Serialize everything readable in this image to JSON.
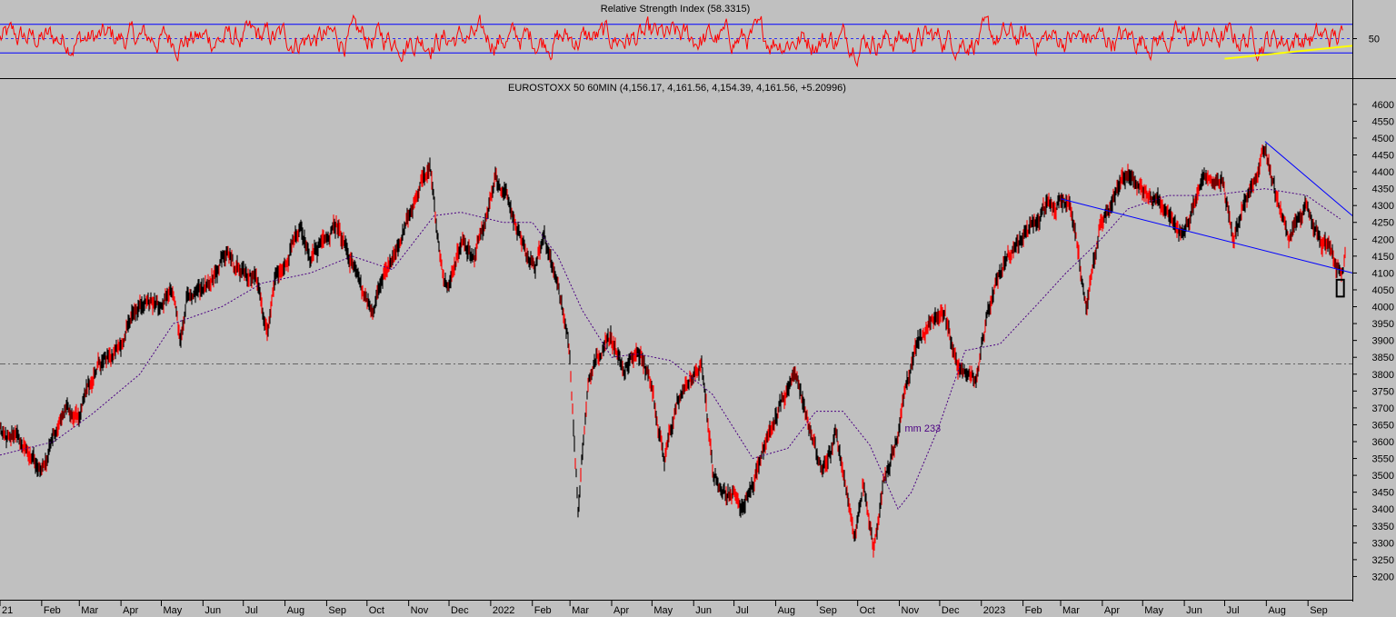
{
  "colors": {
    "background": "#c0c0c0",
    "candles": "#000000",
    "candle_accent": "#ff0000",
    "rsi_line": "#ff0000",
    "rsi_bands": "#0000ff",
    "rsi_trendline": "#ffff00",
    "moving_average": "#4b0082",
    "trendlines": "#0000ff",
    "axis_text": "#000000",
    "reference_line": "#444444"
  },
  "chart_data": [
    {
      "type": "line",
      "panel": "indicator",
      "title": "Relative Strength Index (58.3315)",
      "y_ticks": [
        "50"
      ],
      "band_levels": [
        70,
        30
      ],
      "mid_level": 50,
      "ylim": [
        0,
        100
      ],
      "trendline": {
        "from_x": "2023-07-01",
        "to_x": "2023-09-30",
        "y_start": 22,
        "y_end": 40
      }
    },
    {
      "type": "line",
      "panel": "price",
      "title": "EUROSTOXX 50 60MIN (4,156.17, 4,161.56, 4,154.39, 4,161.56, +5.20996)",
      "ylim": [
        3150,
        4640
      ],
      "y_ticks": [
        "4600",
        "4550",
        "4500",
        "4450",
        "4400",
        "4350",
        "4300",
        "4250",
        "4200",
        "4150",
        "4100",
        "4050",
        "4000",
        "3950",
        "3900",
        "3850",
        "3800",
        "3750",
        "3700",
        "3650",
        "3600",
        "3550",
        "3500",
        "3450",
        "3400",
        "3350",
        "3300",
        "3250",
        "3200"
      ],
      "x_ticks": [
        "21",
        "Feb",
        "Mar",
        "Apr",
        "May",
        "Jun",
        "Jul",
        "Aug",
        "Sep",
        "Oct",
        "Nov",
        "Dec",
        "2022",
        "Feb",
        "Mar",
        "Apr",
        "May",
        "Jun",
        "Jul",
        "Aug",
        "Sep",
        "Oct",
        "Nov",
        "Dec",
        "2023",
        "Feb",
        "Mar",
        "Apr",
        "May",
        "Jun",
        "Jul",
        "Aug",
        "Sep"
      ],
      "x_tick_dates": [
        "2021-01-01",
        "2021-02-01",
        "2021-03-01",
        "2021-04-01",
        "2021-05-01",
        "2021-06-01",
        "2021-07-01",
        "2021-08-01",
        "2021-09-01",
        "2021-10-01",
        "2021-11-01",
        "2021-12-01",
        "2022-01-01",
        "2022-02-01",
        "2022-03-01",
        "2022-04-01",
        "2022-05-01",
        "2022-06-01",
        "2022-07-01",
        "2022-08-01",
        "2022-09-01",
        "2022-10-01",
        "2022-11-01",
        "2022-12-01",
        "2023-01-01",
        "2023-02-01",
        "2023-03-01",
        "2023-04-01",
        "2023-05-01",
        "2023-06-01",
        "2023-07-01",
        "2023-08-01",
        "2023-09-01"
      ],
      "x_range": [
        "2021-01-01",
        "2023-10-04"
      ],
      "reference_level": 3830,
      "series": [
        {
          "name": "EUROSTOXX 50 60MIN",
          "points": [
            [
              "2021-01-01",
              3640
            ],
            [
              "2021-01-20",
              3580
            ],
            [
              "2021-02-01",
              3500
            ],
            [
              "2021-02-10",
              3620
            ],
            [
              "2021-02-20",
              3700
            ],
            [
              "2021-03-01",
              3680
            ],
            [
              "2021-03-08",
              3760
            ],
            [
              "2021-03-15",
              3830
            ],
            [
              "2021-03-25",
              3850
            ],
            [
              "2021-04-01",
              3880
            ],
            [
              "2021-04-10",
              3990
            ],
            [
              "2021-04-20",
              4020
            ],
            [
              "2021-04-30",
              4000
            ],
            [
              "2021-05-10",
              4040
            ],
            [
              "2021-05-15",
              3900
            ],
            [
              "2021-05-20",
              4020
            ],
            [
              "2021-06-01",
              4060
            ],
            [
              "2021-06-10",
              4100
            ],
            [
              "2021-06-20",
              4160
            ],
            [
              "2021-06-25",
              4110
            ],
            [
              "2021-07-01",
              4090
            ],
            [
              "2021-07-10",
              4100
            ],
            [
              "2021-07-19",
              3930
            ],
            [
              "2021-07-25",
              4080
            ],
            [
              "2021-08-01",
              4120
            ],
            [
              "2021-08-12",
              4230
            ],
            [
              "2021-08-20",
              4150
            ],
            [
              "2021-09-01",
              4200
            ],
            [
              "2021-09-08",
              4240
            ],
            [
              "2021-09-20",
              4130
            ],
            [
              "2021-09-30",
              4030
            ],
            [
              "2021-10-06",
              3990
            ],
            [
              "2021-10-15",
              4120
            ],
            [
              "2021-10-25",
              4180
            ],
            [
              "2021-11-01",
              4260
            ],
            [
              "2021-11-10",
              4380
            ],
            [
              "2021-11-17",
              4410
            ],
            [
              "2021-11-26",
              4100
            ],
            [
              "2021-12-01",
              4060
            ],
            [
              "2021-12-10",
              4200
            ],
            [
              "2021-12-20",
              4150
            ],
            [
              "2021-12-31",
              4300
            ],
            [
              "2022-01-05",
              4380
            ],
            [
              "2022-01-15",
              4300
            ],
            [
              "2022-01-28",
              4150
            ],
            [
              "2022-02-03",
              4120
            ],
            [
              "2022-02-10",
              4200
            ],
            [
              "2022-02-20",
              4070
            ],
            [
              "2022-02-28",
              3900
            ],
            [
              "2022-03-07",
              3400
            ],
            [
              "2022-03-15",
              3800
            ],
            [
              "2022-03-25",
              3880
            ],
            [
              "2022-04-01",
              3910
            ],
            [
              "2022-04-10",
              3800
            ],
            [
              "2022-04-20",
              3880
            ],
            [
              "2022-04-30",
              3780
            ],
            [
              "2022-05-10",
              3550
            ],
            [
              "2022-05-20",
              3700
            ],
            [
              "2022-06-01",
              3800
            ],
            [
              "2022-06-07",
              3840
            ],
            [
              "2022-06-15",
              3520
            ],
            [
              "2022-06-22",
              3450
            ],
            [
              "2022-07-01",
              3440
            ],
            [
              "2022-07-06",
              3390
            ],
            [
              "2022-07-15",
              3480
            ],
            [
              "2022-07-25",
              3600
            ],
            [
              "2022-08-01",
              3680
            ],
            [
              "2022-08-10",
              3760
            ],
            [
              "2022-08-16",
              3800
            ],
            [
              "2022-08-26",
              3650
            ],
            [
              "2022-09-05",
              3500
            ],
            [
              "2022-09-15",
              3620
            ],
            [
              "2022-09-25",
              3400
            ],
            [
              "2022-09-29",
              3300
            ],
            [
              "2022-10-05",
              3480
            ],
            [
              "2022-10-13",
              3270
            ],
            [
              "2022-10-20",
              3480
            ],
            [
              "2022-10-31",
              3620
            ],
            [
              "2022-11-05",
              3750
            ],
            [
              "2022-11-15",
              3900
            ],
            [
              "2022-11-30",
              3980
            ],
            [
              "2022-12-05",
              3970
            ],
            [
              "2022-12-15",
              3820
            ],
            [
              "2022-12-29",
              3800
            ],
            [
              "2023-01-05",
              3980
            ],
            [
              "2023-01-20",
              4150
            ],
            [
              "2023-02-01",
              4200
            ],
            [
              "2023-02-15",
              4280
            ],
            [
              "2023-03-01",
              4300
            ],
            [
              "2023-03-07",
              4320
            ],
            [
              "2023-03-13",
              4200
            ],
            [
              "2023-03-20",
              4000
            ],
            [
              "2023-03-31",
              4250
            ],
            [
              "2023-04-10",
              4330
            ],
            [
              "2023-04-20",
              4400
            ],
            [
              "2023-05-01",
              4350
            ],
            [
              "2023-05-15",
              4300
            ],
            [
              "2023-05-31",
              4200
            ],
            [
              "2023-06-15",
              4400
            ],
            [
              "2023-06-30",
              4370
            ],
            [
              "2023-07-07",
              4200
            ],
            [
              "2023-07-20",
              4350
            ],
            [
              "2023-07-31",
              4480
            ],
            [
              "2023-08-10",
              4300
            ],
            [
              "2023-08-18",
              4200
            ],
            [
              "2023-08-31",
              4300
            ],
            [
              "2023-09-10",
              4200
            ],
            [
              "2023-09-20",
              4140
            ],
            [
              "2023-09-26",
              4100
            ],
            [
              "2023-09-29",
              4160
            ]
          ]
        },
        {
          "name": "mm 233",
          "style": "dotted",
          "points": [
            [
              "2021-01-01",
              3560
            ],
            [
              "2021-02-10",
              3600
            ],
            [
              "2021-03-10",
              3680
            ],
            [
              "2021-04-15",
              3800
            ],
            [
              "2021-05-10",
              3950
            ],
            [
              "2021-06-15",
              4000
            ],
            [
              "2021-07-15",
              4070
            ],
            [
              "2021-08-20",
              4100
            ],
            [
              "2021-09-20",
              4150
            ],
            [
              "2021-10-20",
              4110
            ],
            [
              "2021-11-20",
              4270
            ],
            [
              "2021-12-10",
              4280
            ],
            [
              "2022-01-10",
              4250
            ],
            [
              "2022-02-01",
              4250
            ],
            [
              "2022-02-20",
              4150
            ],
            [
              "2022-03-10",
              3990
            ],
            [
              "2022-04-01",
              3850
            ],
            [
              "2022-04-20",
              3860
            ],
            [
              "2022-05-15",
              3840
            ],
            [
              "2022-06-15",
              3740
            ],
            [
              "2022-07-15",
              3550
            ],
            [
              "2022-08-10",
              3580
            ],
            [
              "2022-08-31",
              3690
            ],
            [
              "2022-09-20",
              3690
            ],
            [
              "2022-10-10",
              3590
            ],
            [
              "2022-10-31",
              3400
            ],
            [
              "2022-11-10",
              3450
            ],
            [
              "2022-11-30",
              3640
            ],
            [
              "2022-12-20",
              3870
            ],
            [
              "2023-01-15",
              3890
            ],
            [
              "2023-02-10",
              4000
            ],
            [
              "2023-03-05",
              4100
            ],
            [
              "2023-03-31",
              4200
            ],
            [
              "2023-04-20",
              4290
            ],
            [
              "2023-05-20",
              4330
            ],
            [
              "2023-06-20",
              4330
            ],
            [
              "2023-07-31",
              4350
            ],
            [
              "2023-08-31",
              4330
            ],
            [
              "2023-09-25",
              4260
            ]
          ]
        }
      ],
      "trendlines": [
        {
          "from": [
            "2023-03-01",
            4320
          ],
          "to": [
            "2023-10-04",
            4100
          ]
        },
        {
          "from": [
            "2023-07-31",
            4490
          ],
          "to": [
            "2023-10-04",
            4270
          ]
        }
      ],
      "annotations": [
        {
          "text": "mm 233",
          "x": "2022-11-05",
          "y": 3640
        },
        {
          "shape": "rect",
          "x": "2023-09-25",
          "y_top": 4080,
          "y_bottom": 4030
        }
      ]
    }
  ]
}
